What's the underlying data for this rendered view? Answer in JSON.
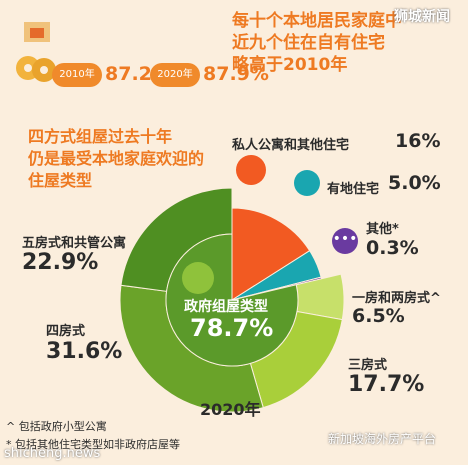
{
  "top": {
    "headline": [
      "每十个本地居民家庭中",
      "近九个住在自有住宅",
      "略高于2010年"
    ],
    "year_a": "2010年",
    "value_a": "87.2%",
    "year_b": "2020年",
    "value_b": "87.9%"
  },
  "subhead": [
    "四方式组屋过去十年",
    "仍是最受本地家庭欢迎的",
    "住屋类型"
  ],
  "center": {
    "label": "政府组屋类型",
    "value": "78.7%"
  },
  "labels": {
    "private_cat": "私人公寓和其他住宅",
    "private_val": "16%",
    "landed_cat": "有地住宅",
    "landed_val": "5.0%",
    "others_cat": "其他*",
    "others_val": "0.3%",
    "room12_cat": "一房和两房式^",
    "room12_val": "6.5%",
    "room3_cat": "三房式",
    "room3_val": "17.7%",
    "room4_cat": "四房式",
    "room4_val": "31.6%",
    "room5_cat": "五房式和共管公寓",
    "room5_val": "22.9%"
  },
  "year_label": "2020年",
  "notes": [
    "^ 包括政府小型公寓",
    "* 包括其他住宅类型如非政府店屋等"
  ],
  "watermarks": {
    "top_right": "狮城新闻",
    "bottom_left": "shicheng.news",
    "bottom_right": "新加坡海外房产平台"
  },
  "colors": {
    "accent": "#ee7a22",
    "private": "#f25a22",
    "landed": "#1aa6b0",
    "others": "#6a3aa0",
    "room12": "#c7e06a",
    "room3": "#a9cf3a",
    "room4": "#6aa329",
    "room5": "#4f8f22",
    "hdb_core": "#5b9a2a"
  },
  "chart_data": {
    "type": "pie",
    "title": "2020年",
    "outer": [
      {
        "label": "私人公寓和其他住宅",
        "value": 16
      },
      {
        "label": "有地住宅",
        "value": 5.0
      },
      {
        "label": "其他*",
        "value": 0.3
      }
    ],
    "hdb_total": {
      "label": "政府组屋类型",
      "value": 78.7
    },
    "hdb_breakdown": [
      {
        "label": "一房和两房式^",
        "value": 6.5
      },
      {
        "label": "三房式",
        "value": 17.7
      },
      {
        "label": "四房式",
        "value": 31.6
      },
      {
        "label": "五房式和共管公寓",
        "value": 22.9
      }
    ]
  }
}
